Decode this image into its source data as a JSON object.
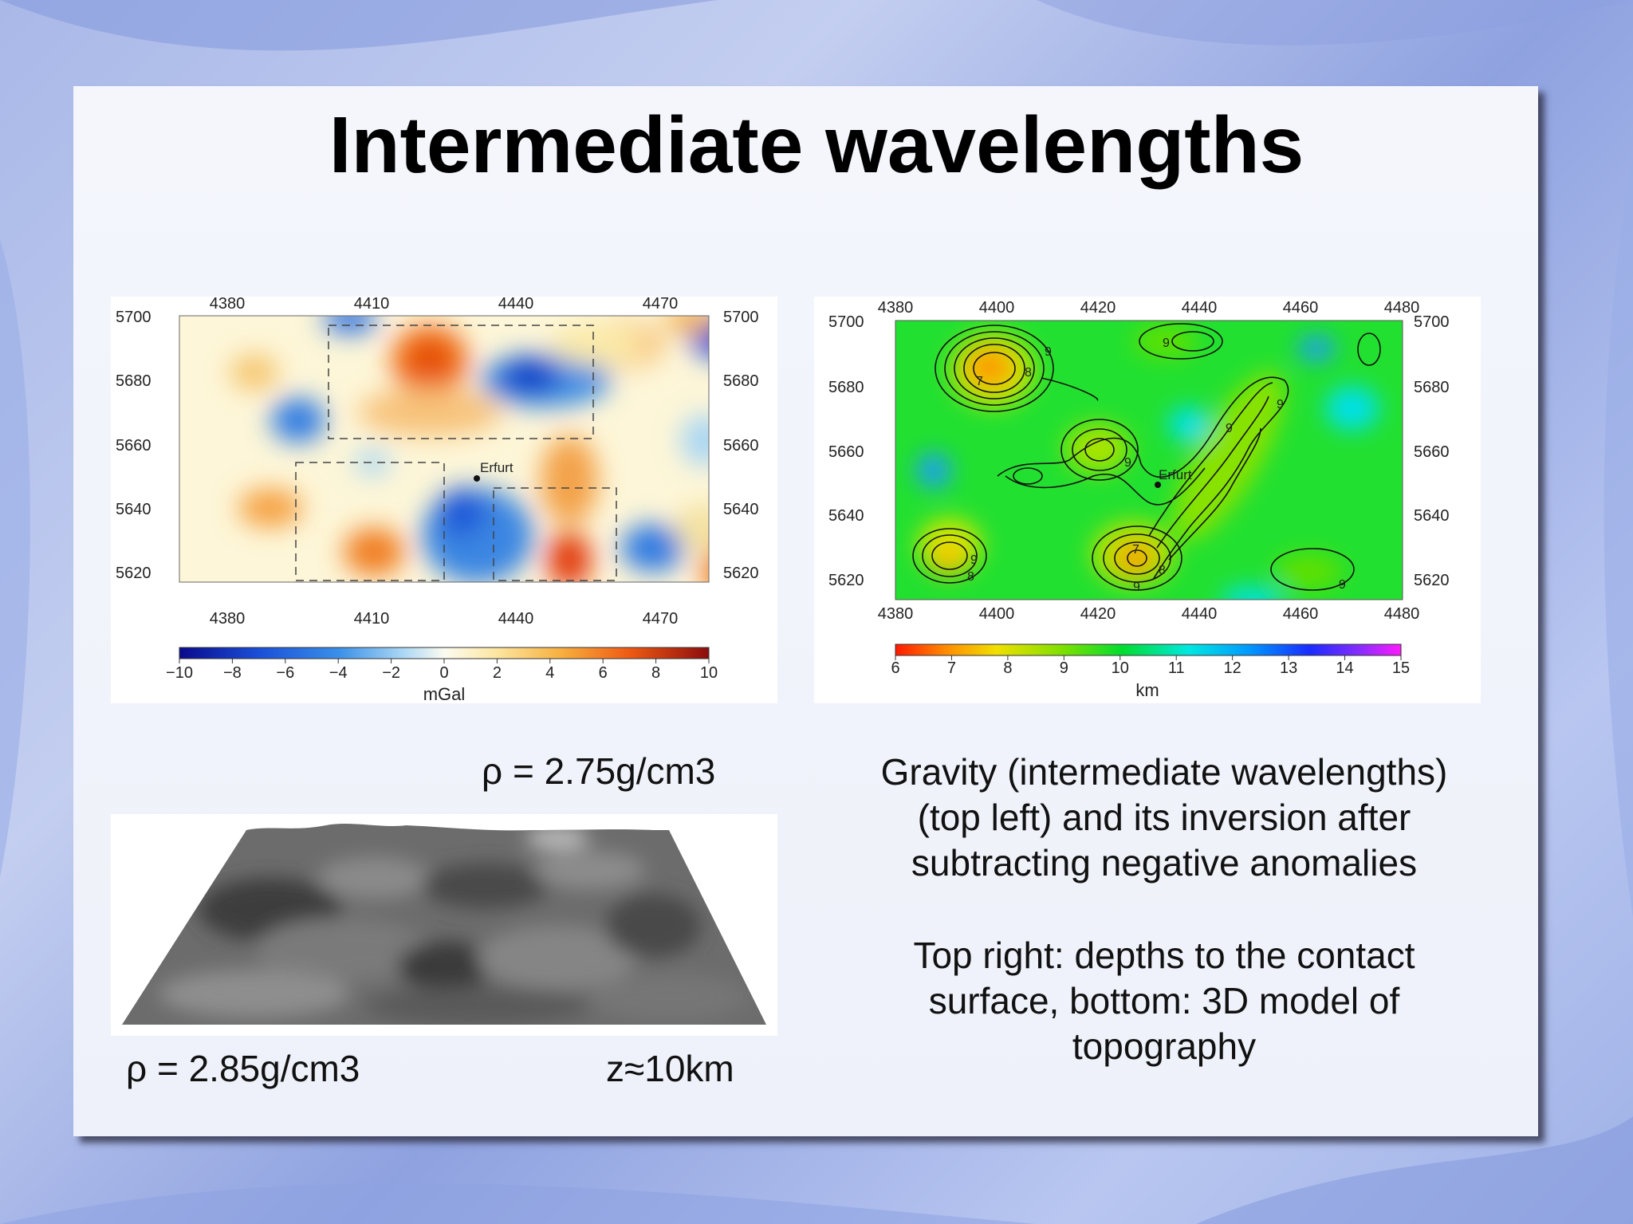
{
  "slide": {
    "title": "Intermediate wavelengths",
    "caption_lines_1": [
      "Gravity (intermediate wavelengths)",
      "(top left) and its inversion after",
      "subtracting negative anomalies"
    ],
    "caption_lines_2": [
      "Top right: depths to the contact",
      "surface, bottom: 3D model of",
      "topography"
    ],
    "rho_top": "ρ = 2.75g/cm3",
    "rho_bottom": "ρ = 2.85g/cm3",
    "depth": "z≈10km"
  },
  "gravity_map": {
    "x_ticks": [
      "4380",
      "4410",
      "4440",
      "4470"
    ],
    "y_ticks": [
      "5700",
      "5680",
      "5660",
      "5640",
      "5620"
    ],
    "town_label": "Erfurt",
    "colorbar_ticks": [
      "−10",
      "−8",
      "−6",
      "−4",
      "−2",
      "0",
      "2",
      "4",
      "6",
      "8",
      "10"
    ],
    "colorbar_unit": "mGal"
  },
  "depth_map": {
    "x_ticks": [
      "4380",
      "4400",
      "4420",
      "4440",
      "4460",
      "4480"
    ],
    "y_ticks": [
      "5700",
      "5680",
      "5660",
      "5640",
      "5620"
    ],
    "town_label": "Erfurt",
    "contour_labels": [
      "7",
      "8",
      "9"
    ],
    "colorbar_ticks": [
      "6",
      "7",
      "8",
      "9",
      "10",
      "11",
      "12",
      "13",
      "14",
      "15"
    ],
    "colorbar_unit": "km"
  }
}
